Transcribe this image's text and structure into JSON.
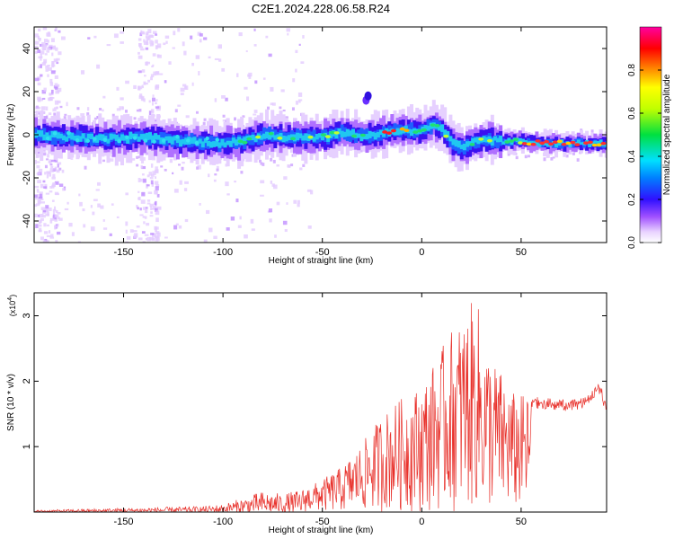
{
  "title": "C2E1.2024.228.06.58.R24",
  "chart_data": [
    {
      "type": "heatmap",
      "xlabel": "Height of straight line (km)",
      "ylabel": "Frequency (Hz)",
      "xlim": [
        -195,
        93
      ],
      "ylim": [
        -50,
        50
      ],
      "xticks": [
        -150,
        -100,
        -50,
        0,
        50
      ],
      "yticks": [
        -40,
        -20,
        0,
        20,
        40
      ],
      "trace": {
        "x": [
          -195,
          -180,
          -160,
          -140,
          -120,
          -100,
          -90,
          -80,
          -70,
          -60,
          -50,
          -40,
          -30,
          -20,
          -10,
          0,
          5,
          10,
          15,
          20,
          30,
          40,
          50,
          60,
          70,
          80,
          93
        ],
        "y": [
          0,
          -1,
          -2,
          -1,
          -3,
          -4,
          -3,
          0,
          -1,
          -1,
          -1,
          1,
          -1,
          1,
          2,
          2,
          5,
          2,
          -4,
          -6,
          -2,
          -3,
          -3,
          -4,
          -4,
          -4,
          -4
        ]
      },
      "colorbar": {
        "label": "Normalized spectral amplitude",
        "ticks": [
          "0.0",
          "0.2",
          "0.4",
          "0.6",
          "0.8"
        ],
        "range": [
          0,
          1
        ]
      }
    },
    {
      "type": "line",
      "xlabel": "Height of straight line (km)",
      "ylabel": "SNR (10 * v/v)",
      "multiplier": "(x10",
      "multiplier_exp": "4",
      "multiplier_close": ")",
      "xlim": [
        -195,
        93
      ],
      "ylim": [
        0,
        3.35
      ],
      "xticks": [
        -150,
        -100,
        -50,
        0,
        50
      ],
      "yticks": [
        1,
        2,
        3
      ],
      "line_color": "#e8302a",
      "envelope": {
        "x": [
          -195,
          -150,
          -110,
          -100,
          -90,
          -80,
          -70,
          -60,
          -50,
          -40,
          -30,
          -20,
          -10,
          0,
          10,
          15,
          20,
          25,
          28,
          30,
          35,
          40,
          45,
          50,
          55,
          60,
          70,
          80,
          85,
          90,
          93
        ],
        "y": [
          0.03,
          0.06,
          0.09,
          0.12,
          0.22,
          0.32,
          0.28,
          0.35,
          0.5,
          0.7,
          1.05,
          1.5,
          1.75,
          1.95,
          2.5,
          2.8,
          2.95,
          3.2,
          3.3,
          2.7,
          2.4,
          2.15,
          1.85,
          1.8,
          1.78,
          1.75,
          1.72,
          1.75,
          1.85,
          2.0,
          1.6
        ]
      }
    }
  ]
}
